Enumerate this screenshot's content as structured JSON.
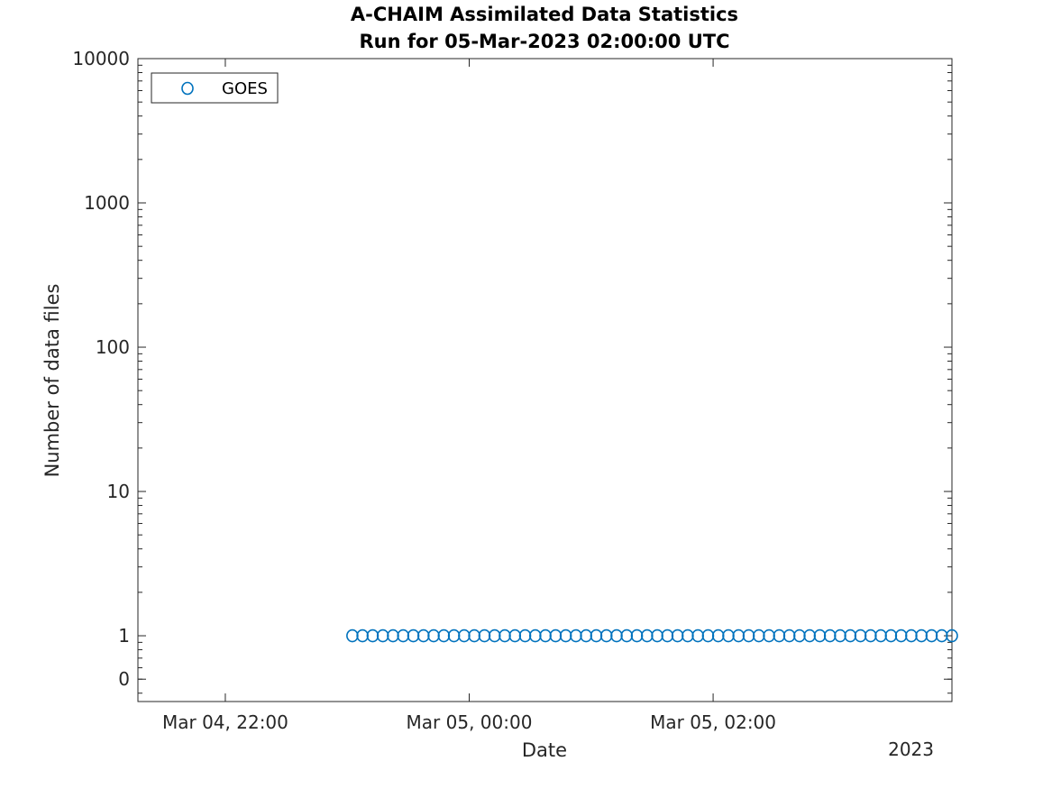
{
  "chart_data": {
    "type": "scatter",
    "title": [
      "A-CHAIM Assimilated Data Statistics",
      "Run for 05-Mar-2023 02:00:00 UTC"
    ],
    "xlabel": "Date",
    "ylabel": "Number of data files",
    "x_secondary_label": "2023",
    "yscale": "log",
    "grid": false,
    "legend_position": "top-left",
    "colors": {
      "series": "#0072bd",
      "axis": "#262626"
    },
    "xlim": [
      "2023-03-04T21:17:00",
      "2023-03-05T03:57:30"
    ],
    "ylim": [
      0.35,
      10000
    ],
    "x_ticks": [
      {
        "value": "2023-03-04T22:00:00",
        "label": "Mar 04, 22:00"
      },
      {
        "value": "2023-03-05T00:00:00",
        "label": "Mar 05, 00:00"
      },
      {
        "value": "2023-03-05T02:00:00",
        "label": "Mar 05, 02:00"
      }
    ],
    "y_ticks": [
      {
        "value": 0.5,
        "label": "0"
      },
      {
        "value": 1,
        "label": "1"
      },
      {
        "value": 10,
        "label": "10"
      },
      {
        "value": 100,
        "label": "100"
      },
      {
        "value": 1000,
        "label": "1000"
      },
      {
        "value": 10000,
        "label": "10000"
      }
    ],
    "series": [
      {
        "name": "GOES",
        "marker": "circle-open",
        "x_start": "2023-03-04T23:02:30",
        "x_end": "2023-03-05T03:57:30",
        "count": 60,
        "values": [
          1,
          1,
          1,
          1,
          1,
          1,
          1,
          1,
          1,
          1,
          1,
          1,
          1,
          1,
          1,
          1,
          1,
          1,
          1,
          1,
          1,
          1,
          1,
          1,
          1,
          1,
          1,
          1,
          1,
          1,
          1,
          1,
          1,
          1,
          1,
          1,
          1,
          1,
          1,
          1,
          1,
          1,
          1,
          1,
          1,
          1,
          1,
          1,
          1,
          1,
          1,
          1,
          1,
          1,
          1,
          1,
          1,
          1,
          1,
          1
        ]
      }
    ]
  }
}
